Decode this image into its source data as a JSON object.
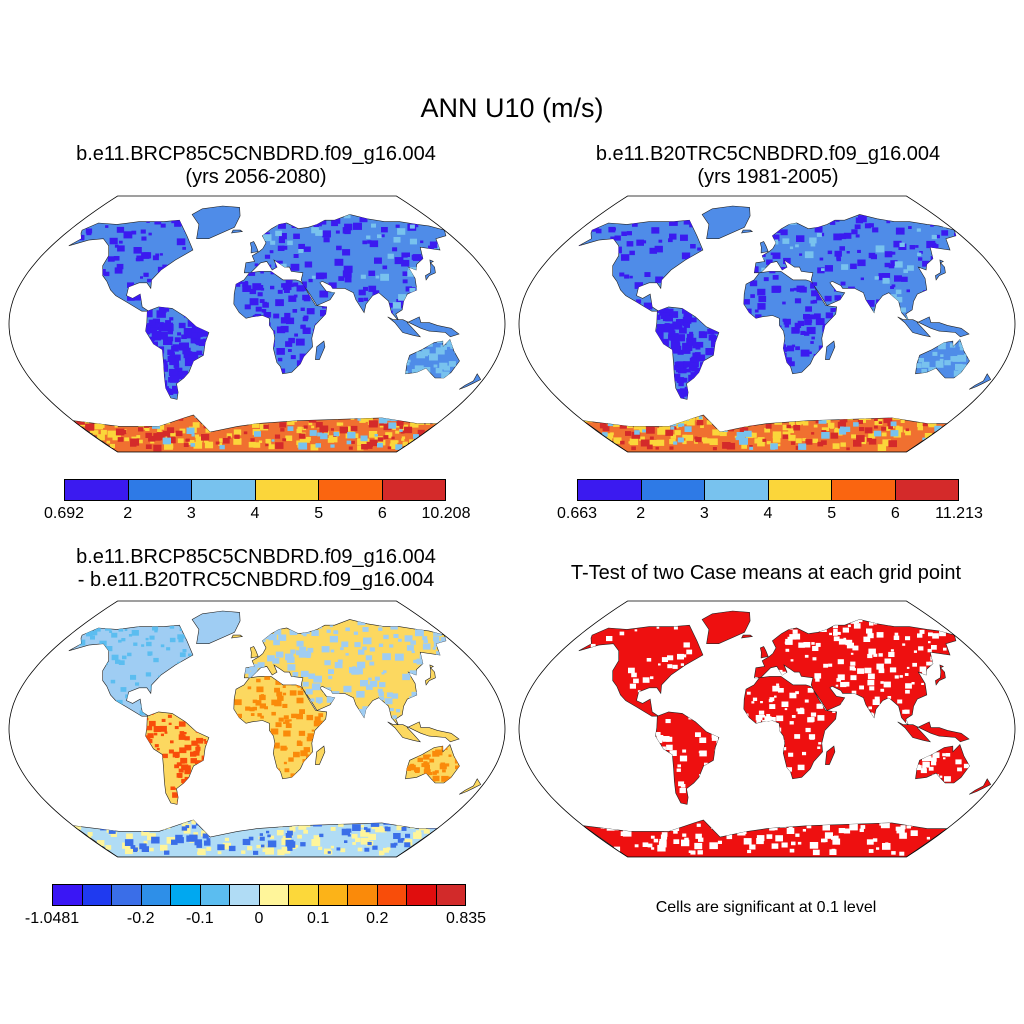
{
  "title": "ANN U10 (m/s)",
  "panels": [
    {
      "id": "p1",
      "title_line1": "b.e11.BRCP85C5CNBDRD.f09_g16.004",
      "title_line2": "(yrs 2056-2080)"
    },
    {
      "id": "p2",
      "title_line1": "b.e11.B20TRC5CNBDRD.f09_g16.004",
      "title_line2": "(yrs 1981-2005)"
    },
    {
      "id": "p3",
      "title_line1": "b.e11.BRCP85C5CNBDRD.f09_g16.004",
      "title_line2": "- b.e11.B20TRC5CNBDRD.f09_g16.004"
    },
    {
      "id": "p4",
      "title_line1": "T-Test of two Case means at each grid point",
      "footnote": "Cells are significant at 0.1 level"
    }
  ],
  "colorbars": [
    {
      "id": "cb1",
      "colors": [
        "#3b1af0",
        "#2e7ae6",
        "#78c2ee",
        "#fbd63a",
        "#fa6510",
        "#d42a2a"
      ],
      "labels": [
        "0.692",
        "2",
        "3",
        "4",
        "5",
        "6",
        "10.208"
      ]
    },
    {
      "id": "cb2",
      "colors": [
        "#3b1af0",
        "#2e7ae6",
        "#78c2ee",
        "#fbd63a",
        "#fa6510",
        "#d42a2a"
      ],
      "labels": [
        "0.663",
        "2",
        "3",
        "4",
        "5",
        "6",
        "11.213"
      ]
    },
    {
      "id": "cb3",
      "colors": [
        "#3a16f5",
        "#1f3af0",
        "#3a6ee8",
        "#2e8fe8",
        "#00a8f0",
        "#5bbdf0",
        "#b0dcf5",
        "#fff59a",
        "#fcd83a",
        "#fcb318",
        "#fa8a0a",
        "#f84d0a",
        "#e00e0e",
        "#d22a2a"
      ],
      "labels": [
        "-1.0481",
        "",
        "",
        "-0.2",
        "",
        "-0.1",
        "",
        "0",
        "",
        "0.1",
        "",
        "0.2",
        "",
        "",
        "0.835"
      ]
    }
  ],
  "map_style": {
    "ocean": "#ffffff",
    "land_p1": "#4f8ce8",
    "land_p1_dark": "#3b1af0",
    "land_p2": "#4f8ce8",
    "land_p2_dark": "#3b1af0",
    "land_p3": "#fcd860",
    "land_p3_cool": "#9fcdf3",
    "land_p4": "#ee1010",
    "antarctica_hot": "#f07030"
  }
}
